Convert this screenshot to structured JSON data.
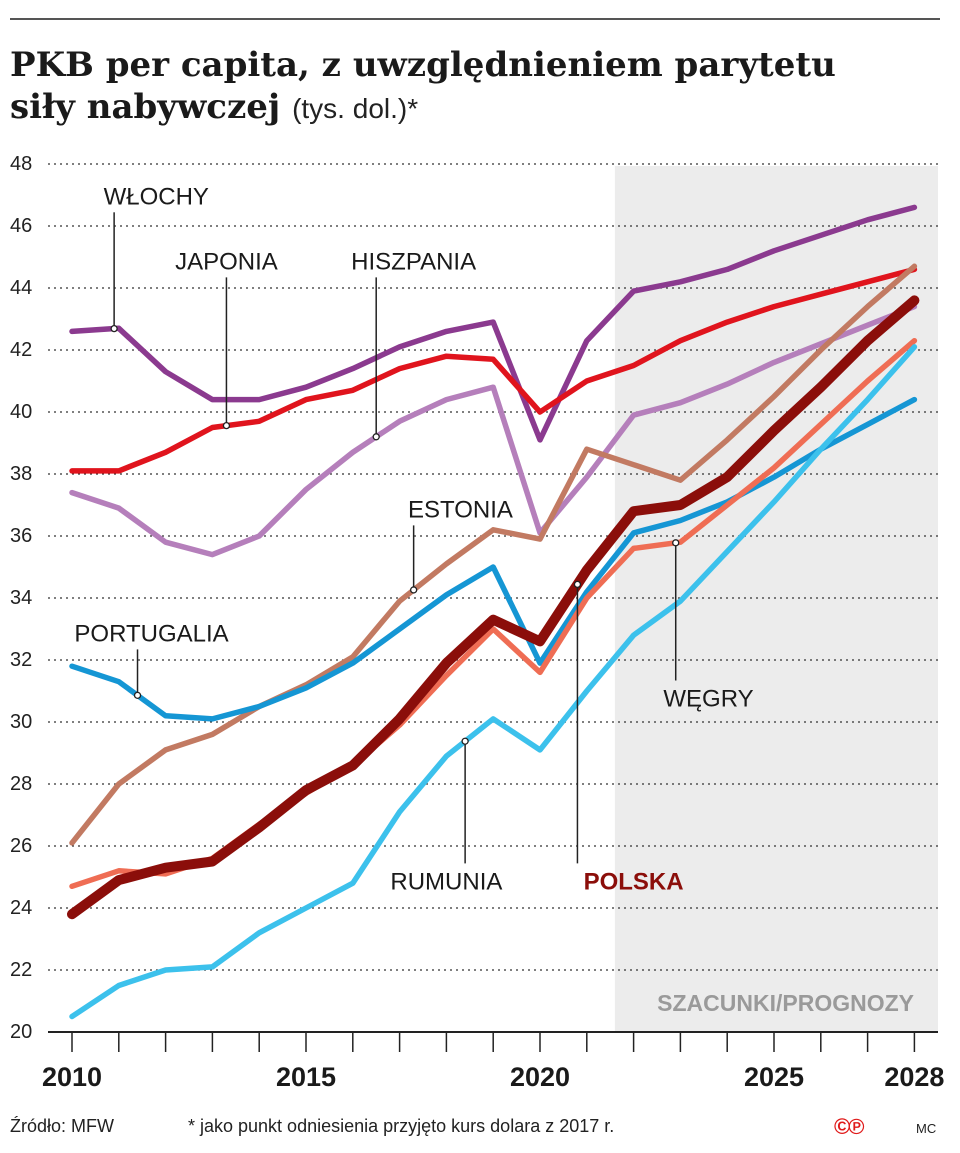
{
  "title_main": "PKB per capita, z uwzględnieniem parytetu siły nabywczej",
  "title_unit": "(tys. dol.)*",
  "source": "Źródło: MFW",
  "footnote": "* jako punkt odniesienia przyjęto kurs dolara z 2017 r.",
  "copyright": "©℗",
  "author": "MC",
  "chart_data": {
    "type": "line",
    "x": [
      2010,
      2011,
      2012,
      2013,
      2014,
      2015,
      2016,
      2017,
      2018,
      2019,
      2020,
      2021,
      2022,
      2023,
      2024,
      2025,
      2026,
      2027,
      2028
    ],
    "x_tick_labels": [
      "2010",
      "2015",
      "2020",
      "2025",
      "2028"
    ],
    "ylim": [
      20,
      48
    ],
    "y_ticks": [
      20,
      22,
      24,
      26,
      28,
      30,
      32,
      34,
      36,
      38,
      40,
      42,
      44,
      46,
      48
    ],
    "grid": true,
    "shaded_region": {
      "from": 2021.6,
      "to": 2028.6,
      "label": "SZACUNKI/PROGNOZY"
    },
    "series": [
      {
        "name": "WŁOCHY",
        "color": "#8b3a8f",
        "width": 5.5,
        "values": [
          42.6,
          42.7,
          41.3,
          40.4,
          40.4,
          40.8,
          41.4,
          42.1,
          42.6,
          42.9,
          39.1,
          42.3,
          43.9,
          44.2,
          44.6,
          45.2,
          45.7,
          46.2,
          46.6
        ]
      },
      {
        "name": "JAPONIA",
        "color": "#e0141d",
        "width": 5.5,
        "values": [
          38.1,
          38.1,
          38.7,
          39.5,
          39.7,
          40.4,
          40.7,
          41.4,
          41.8,
          41.7,
          40.0,
          41.0,
          41.5,
          42.3,
          42.9,
          43.4,
          43.8,
          44.2,
          44.6
        ]
      },
      {
        "name": "HISZPANIA",
        "color": "#b57fbb",
        "width": 5.5,
        "values": [
          37.4,
          36.9,
          35.8,
          35.4,
          36.0,
          37.5,
          38.7,
          39.7,
          40.4,
          40.8,
          36.1,
          37.9,
          39.9,
          40.3,
          40.9,
          41.6,
          42.2,
          42.8,
          43.4
        ]
      },
      {
        "name": "ESTONIA",
        "color": "#c27a62",
        "width": 5.5,
        "values": [
          26.1,
          28.0,
          29.1,
          29.6,
          30.5,
          31.2,
          32.1,
          33.9,
          35.1,
          36.2,
          35.9,
          38.8,
          38.3,
          37.8,
          39.1,
          40.5,
          42.0,
          43.4,
          44.7
        ]
      },
      {
        "name": "PORTUGALIA",
        "color": "#1596d4",
        "width": 5.5,
        "values": [
          31.8,
          31.3,
          30.2,
          30.1,
          30.5,
          31.1,
          31.9,
          33.0,
          34.1,
          35.0,
          31.9,
          34.2,
          36.1,
          36.5,
          37.1,
          37.9,
          38.8,
          39.6,
          40.4
        ]
      },
      {
        "name": "WĘGRY",
        "color": "#ef6d54",
        "width": 5.5,
        "values": [
          24.7,
          25.2,
          25.1,
          25.6,
          26.7,
          27.7,
          28.6,
          29.9,
          31.5,
          33.0,
          31.6,
          34.0,
          35.6,
          35.8,
          37.0,
          38.2,
          39.6,
          41.0,
          42.3
        ]
      },
      {
        "name": "RUMUNIA",
        "color": "#3cc1ec",
        "width": 5.5,
        "values": [
          20.5,
          21.5,
          22.0,
          22.1,
          23.2,
          24.0,
          24.8,
          27.1,
          28.9,
          30.1,
          29.1,
          31.0,
          32.8,
          33.9,
          35.5,
          37.1,
          38.8,
          40.4,
          42.1
        ]
      },
      {
        "name": "POLSKA",
        "color": "#8b0e0a",
        "width": 10,
        "values": [
          23.8,
          24.9,
          25.3,
          25.5,
          26.6,
          27.8,
          28.6,
          30.1,
          31.9,
          33.3,
          32.6,
          34.9,
          36.8,
          37.0,
          37.9,
          39.4,
          40.8,
          42.3,
          43.6
        ]
      }
    ],
    "annotations": [
      {
        "text": "WŁOCHY",
        "series": "WŁOCHY",
        "x": 2010.9,
        "label_x": 2011.8,
        "label_y": 46.7,
        "anchor": "middle",
        "color": "#1a1a1a"
      },
      {
        "text": "JAPONIA",
        "series": "JAPONIA",
        "x": 2013.3,
        "label_x": 2013.3,
        "label_y": 44.6,
        "anchor": "middle",
        "color": "#1a1a1a"
      },
      {
        "text": "HISZPANIA",
        "series": "HISZPANIA",
        "x": 2016.5,
        "label_x": 2017.3,
        "label_y": 44.6,
        "anchor": "middle",
        "color": "#1a1a1a"
      },
      {
        "text": "ESTONIA",
        "series": "ESTONIA",
        "x": 2017.3,
        "label_x": 2018.3,
        "label_y": 36.6,
        "anchor": "middle",
        "color": "#1a1a1a"
      },
      {
        "text": "PORTUGALIA",
        "series": "PORTUGALIA",
        "x": 2011.4,
        "label_x": 2011.7,
        "label_y": 32.6,
        "anchor": "middle",
        "color": "#1a1a1a"
      },
      {
        "text": "WĘGRY",
        "series": "WĘGRY",
        "x": 2022.9,
        "label_x": 2023.6,
        "label_y": 30.5,
        "anchor": "middle",
        "color": "#1a1a1a"
      },
      {
        "text": "RUMUNIA",
        "series": "RUMUNIA",
        "x": 2018.4,
        "label_x": 2018.0,
        "label_y": 24.6,
        "anchor": "middle",
        "color": "#1a1a1a"
      },
      {
        "text": "POLSKA",
        "series": "POLSKA",
        "x": 2020.8,
        "label_x": 2022.0,
        "label_y": 24.6,
        "anchor": "middle",
        "color": "#8b0e0a",
        "bold": true
      }
    ]
  }
}
